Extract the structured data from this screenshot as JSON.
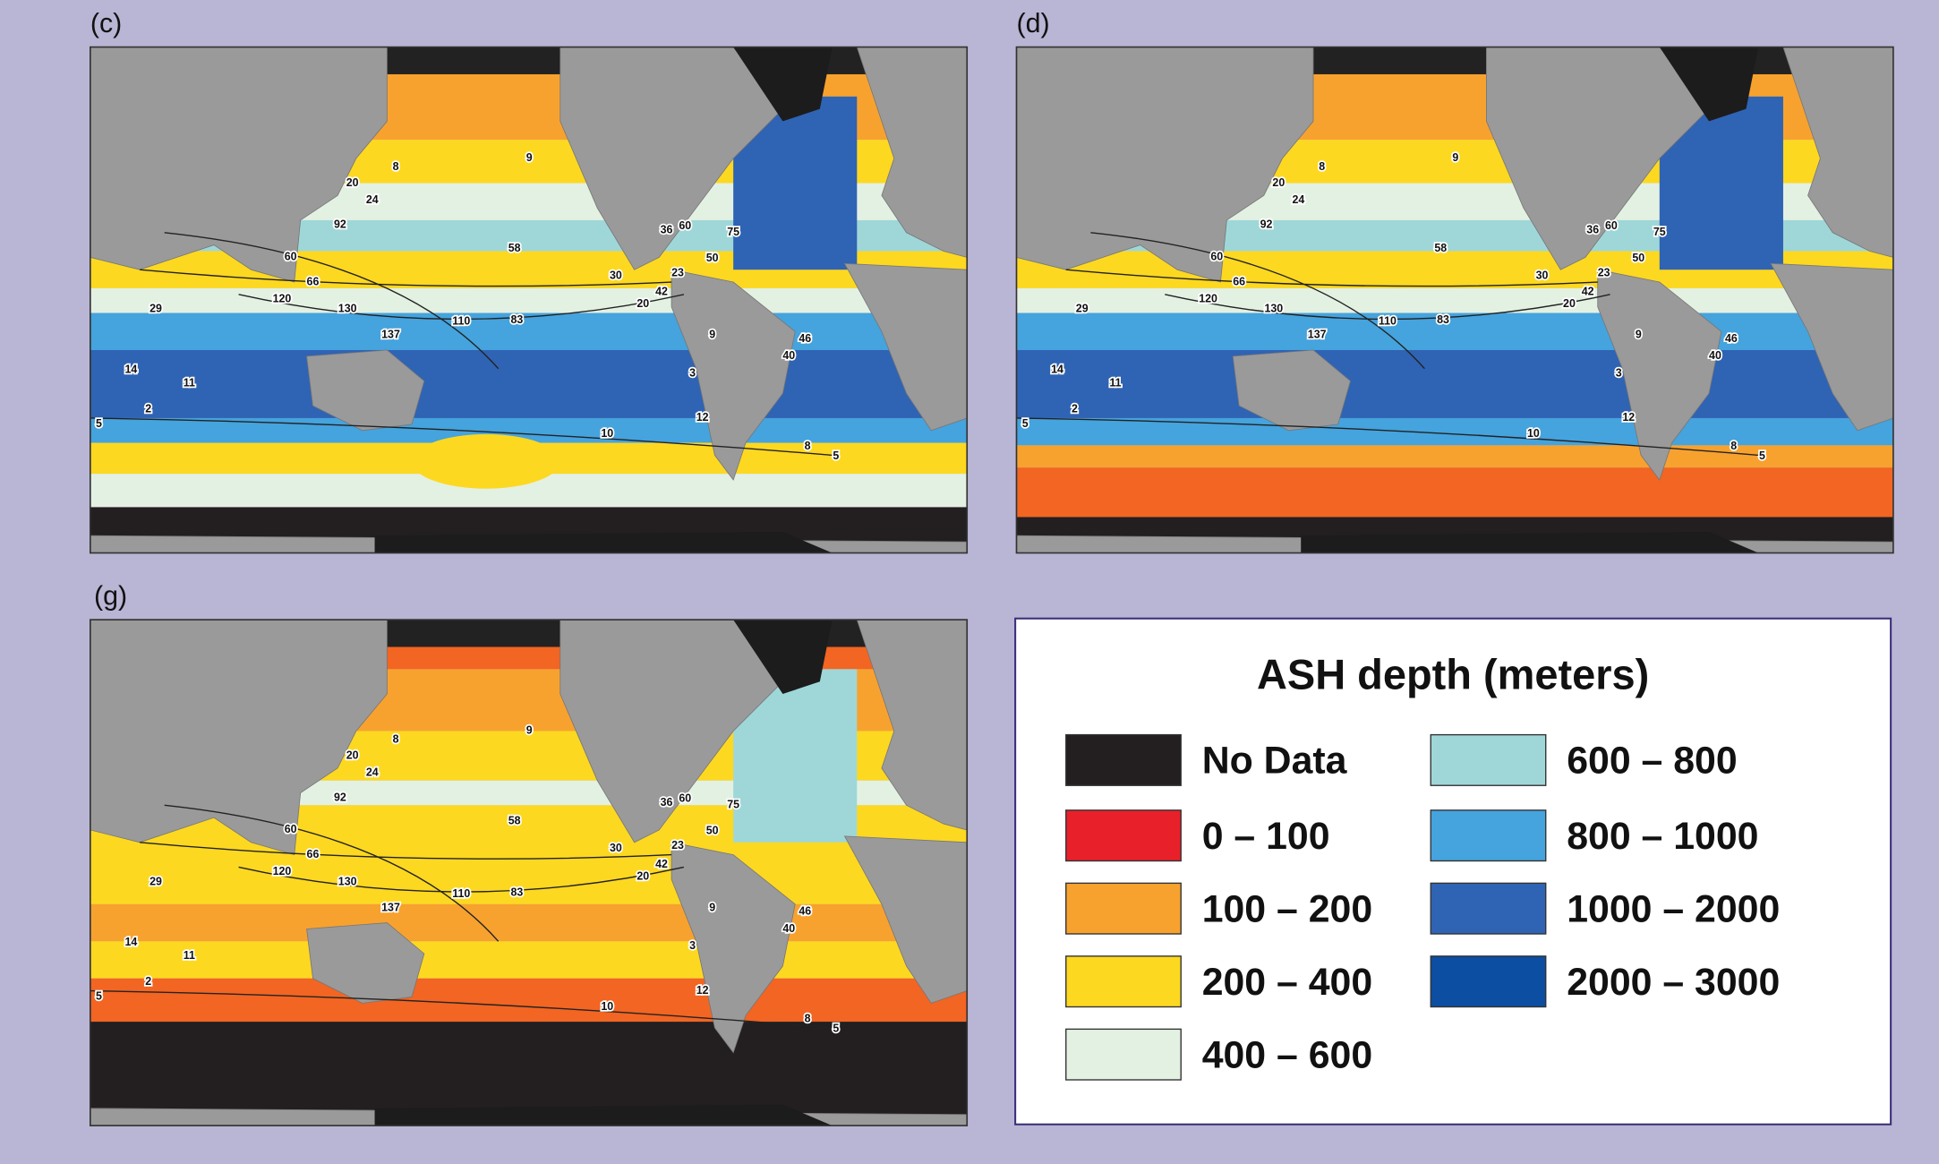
{
  "panels": [
    {
      "label": "(c)",
      "contour_labels": [
        8,
        9,
        20,
        24,
        92,
        60,
        120,
        66,
        130,
        137,
        110,
        83,
        58,
        30,
        20,
        23,
        42,
        9,
        3,
        12,
        11,
        2,
        5,
        40,
        46,
        10,
        8,
        5,
        36,
        60,
        75,
        50,
        14,
        29
      ]
    },
    {
      "label": "(d)",
      "contour_labels": [
        8,
        9,
        20,
        24,
        92,
        60,
        120,
        66,
        130,
        137,
        110,
        83,
        58,
        30,
        20,
        23,
        42,
        9,
        3,
        12,
        11,
        2,
        5,
        40,
        46,
        10,
        8,
        5,
        36,
        60,
        75,
        50,
        14,
        29
      ]
    },
    {
      "label": "(g)",
      "contour_labels": [
        8,
        9,
        20,
        24,
        92,
        60,
        120,
        66,
        130,
        137,
        110,
        83,
        58,
        30,
        20,
        23,
        42,
        9,
        3,
        12,
        11,
        2,
        5,
        40,
        46,
        10,
        8,
        5,
        36,
        60,
        75,
        50,
        14,
        29
      ]
    }
  ],
  "legend": {
    "title": "ASH depth (meters)",
    "items": [
      {
        "label": "No Data",
        "color": "#231f20"
      },
      {
        "label": "0 – 100",
        "color": "#e8202a"
      },
      {
        "label": "100 – 200",
        "color": "#f7a22f"
      },
      {
        "label": "200 – 400",
        "color": "#fdd820"
      },
      {
        "label": "400 – 600",
        "color": "#e3f1e2"
      },
      {
        "label": "600 – 800",
        "color": "#9fd7d9"
      },
      {
        "label": "800 – 1000",
        "color": "#45a3dd"
      },
      {
        "label": "1000 – 2000",
        "color": "#2f63b4"
      },
      {
        "label": "2000 – 3000",
        "color": "#0b4ea2"
      }
    ]
  }
}
